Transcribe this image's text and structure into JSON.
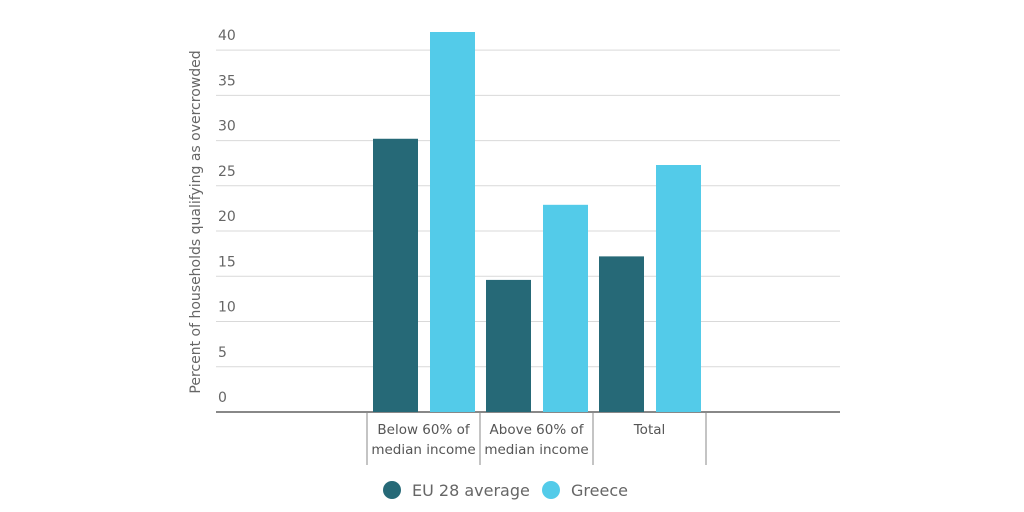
{
  "chart_data": {
    "type": "bar",
    "y_label": "Percent of households qualifying as overcrowded",
    "categories": [
      "Below 60% of median income",
      "Above 60% of median income",
      "Total"
    ],
    "series": [
      {
        "name": "EU 28 average",
        "color": "#266977",
        "values": [
          30.2,
          14.6,
          17.2
        ]
      },
      {
        "name": "Greece",
        "color": "#53cbe9",
        "values": [
          42,
          22.9,
          27.3
        ]
      }
    ],
    "ylim": [
      0,
      42
    ],
    "yticks": [
      0,
      5,
      10,
      15,
      20,
      25,
      30,
      35,
      40
    ],
    "grid": true
  }
}
